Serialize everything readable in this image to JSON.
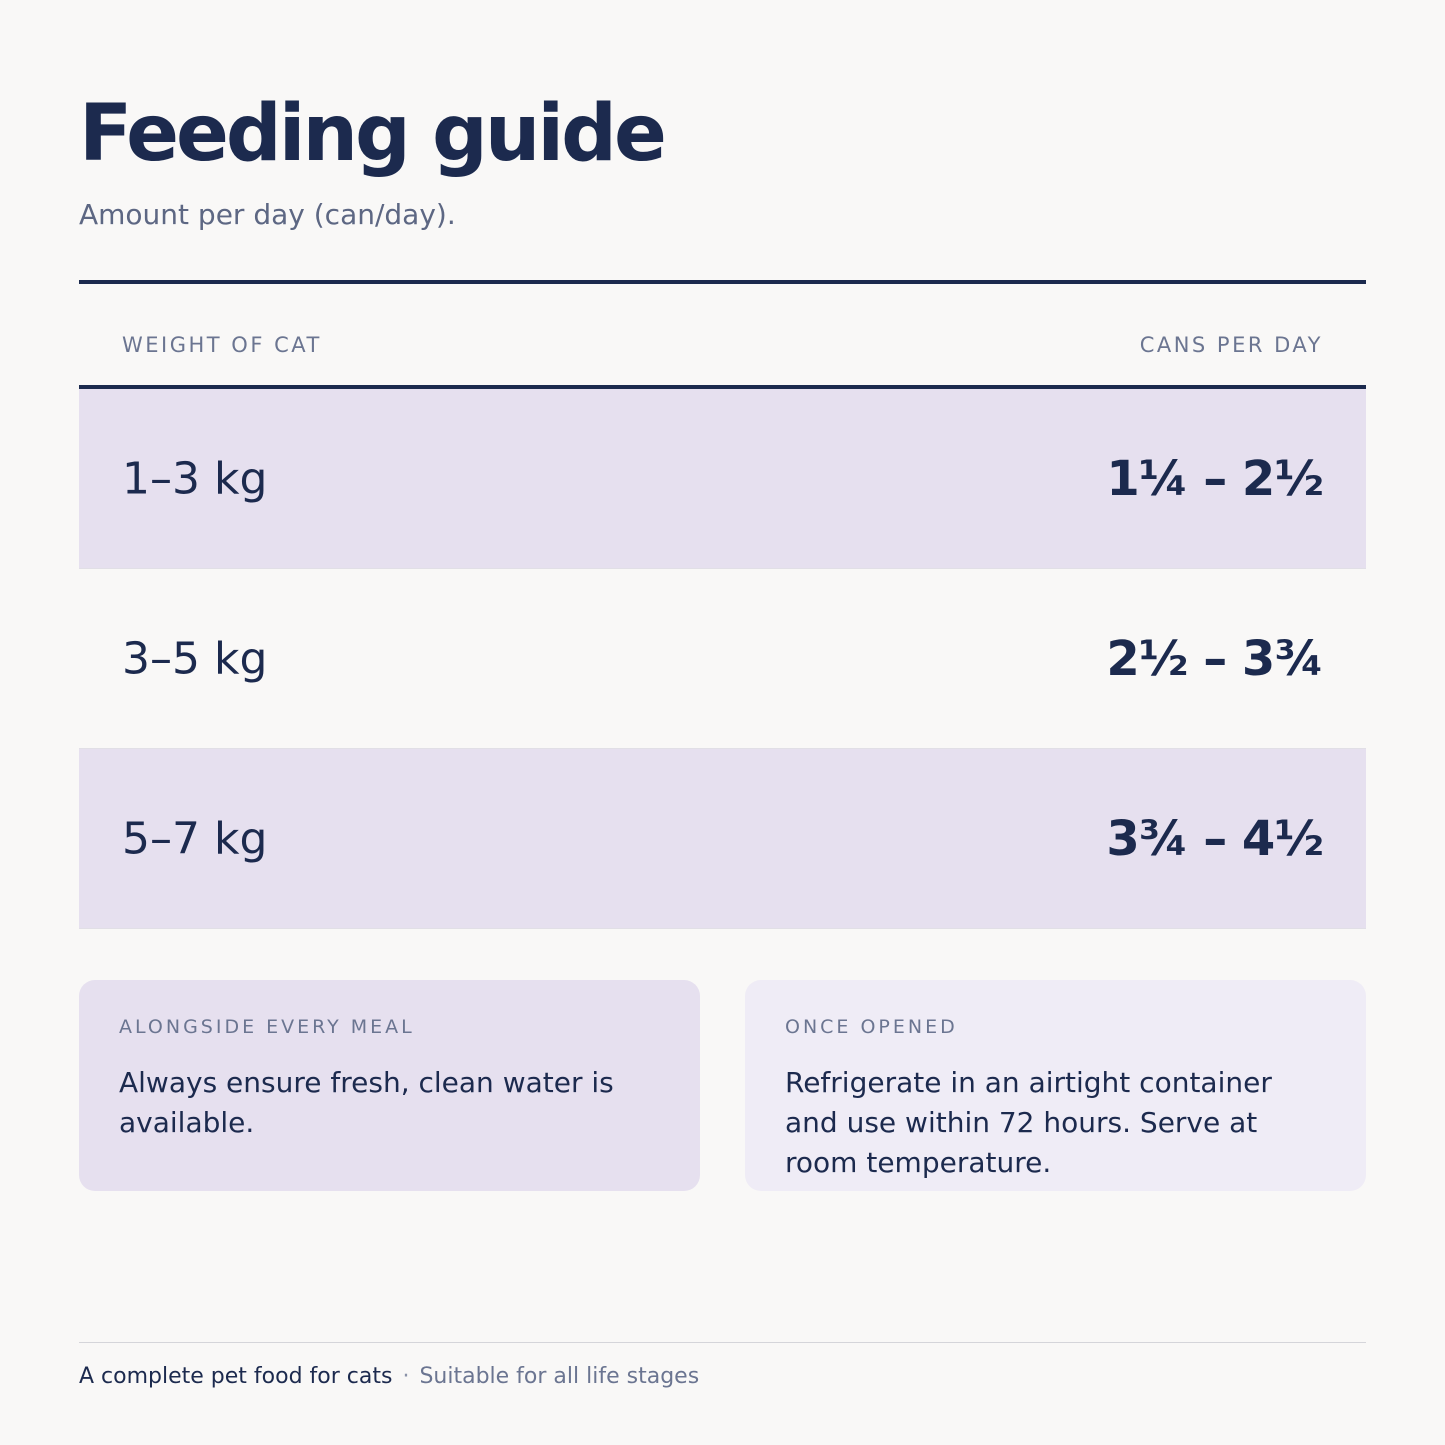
{
  "header": {
    "title": "Feeding guide",
    "subtitle": "Amount per day (can/day)."
  },
  "table": {
    "columns": [
      "WEIGHT OF CAT",
      "CANS PER DAY"
    ],
    "rows": [
      {
        "weight": "1–3 kg",
        "cans": "1¼ – 2½"
      },
      {
        "weight": "3–5 kg",
        "cans": "2½ – 3¾"
      },
      {
        "weight": "5–7 kg",
        "cans": "3¾ – 4½"
      }
    ]
  },
  "notes": [
    {
      "title": "ALONGSIDE EVERY MEAL",
      "body": "Always ensure fresh, clean water is available."
    },
    {
      "title": "ONCE OPENED",
      "body": "Refrigerate in an airtight container and use within 72 hours. Serve at room temperature."
    }
  ],
  "footer": {
    "primary": "A complete pet food for cats",
    "separator": "·",
    "secondary": "Suitable for all life stages"
  },
  "colors": {
    "ink": "#1c2a4e",
    "muted": "#6b7591",
    "row_shade": "#e6e0ef",
    "background": "#f9f8f7"
  }
}
